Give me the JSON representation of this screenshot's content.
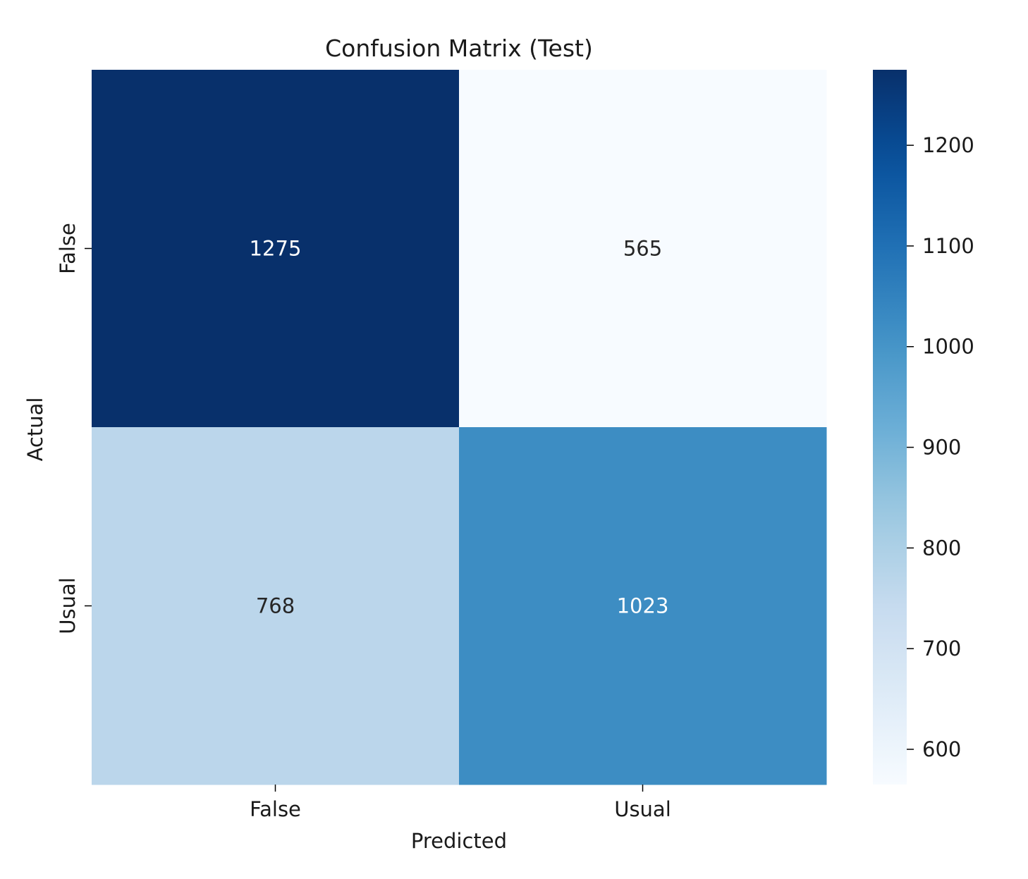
{
  "chart_data": {
    "type": "heatmap",
    "title": "Confusion Matrix (Test)",
    "xlabel": "Predicted",
    "ylabel": "Actual",
    "x_categories": [
      "False",
      "Usual"
    ],
    "y_categories": [
      "False",
      "Usual"
    ],
    "values": [
      [
        1275,
        565
      ],
      [
        768,
        1023
      ]
    ],
    "colormap": "Blues",
    "vmin": 565,
    "vmax": 1275,
    "colorbar": {
      "ticks": [
        600,
        700,
        800,
        900,
        1000,
        1100,
        1200
      ]
    },
    "grid": false,
    "colors": {
      "low": "#f7fbff",
      "high": "#08306b"
    }
  }
}
